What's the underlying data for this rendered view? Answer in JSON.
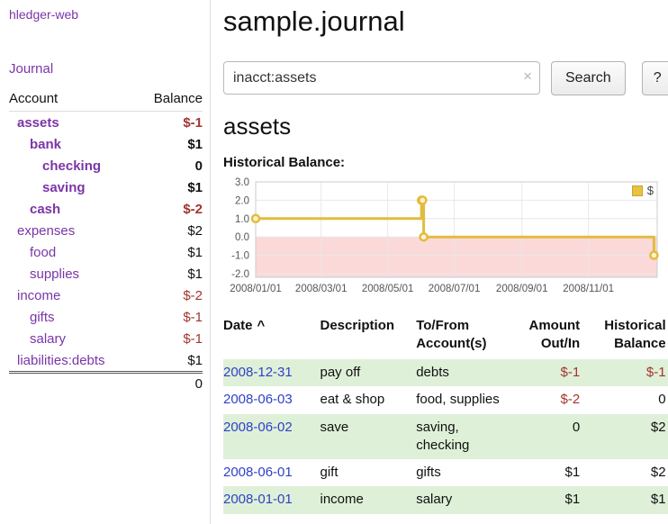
{
  "colors": {
    "link_purple": "#7b35a8",
    "link_blue": "#2f41c8",
    "negative": "#a3342f",
    "stripe": "#dff0d8"
  },
  "sidebar": {
    "app_title": "hledger-web",
    "journal_link": "Journal",
    "accounts": {
      "header": {
        "account": "Account",
        "balance": "Balance"
      },
      "rows": [
        {
          "name": "assets",
          "balance": "$-1",
          "indent": 0,
          "bold": true,
          "negative": true
        },
        {
          "name": "bank",
          "balance": "$1",
          "indent": 1,
          "bold": true,
          "negative": false
        },
        {
          "name": "checking",
          "balance": "0",
          "indent": 2,
          "bold": true,
          "negative": false
        },
        {
          "name": "saving",
          "balance": "$1",
          "indent": 2,
          "bold": true,
          "negative": false
        },
        {
          "name": "cash",
          "balance": "$-2",
          "indent": 1,
          "bold": true,
          "negative": true
        },
        {
          "name": "expenses",
          "balance": "$2",
          "indent": 0,
          "bold": false,
          "negative": false
        },
        {
          "name": "food",
          "balance": "$1",
          "indent": 1,
          "bold": false,
          "negative": false
        },
        {
          "name": "supplies",
          "balance": "$1",
          "indent": 1,
          "bold": false,
          "negative": false
        },
        {
          "name": "income",
          "balance": "$-2",
          "indent": 0,
          "bold": false,
          "negative": true
        },
        {
          "name": "gifts",
          "balance": "$-1",
          "indent": 1,
          "bold": false,
          "negative": true
        },
        {
          "name": "salary",
          "balance": "$-1",
          "indent": 1,
          "bold": false,
          "negative": true
        },
        {
          "name": "liabilities:debts",
          "balance": "$1",
          "indent": 0,
          "bold": false,
          "negative": false
        }
      ],
      "total": "0"
    }
  },
  "main": {
    "title": "sample.journal",
    "search": {
      "value": "inacct:assets",
      "clear_icon": "×",
      "search_button": "Search",
      "help_button": "?"
    },
    "account_heading": "assets",
    "chart_label": "Historical Balance:"
  },
  "chart_data": {
    "type": "line",
    "title": "Historical Balance",
    "series": [
      {
        "name": "$",
        "x": [
          "2008-01-01",
          "2008-06-01",
          "2008-06-02",
          "2008-06-03",
          "2008-12-31"
        ],
        "values": [
          1,
          2,
          2,
          0,
          -1
        ]
      }
    ],
    "interpolation": "step-after",
    "ylim": [
      -2.2,
      3.0
    ],
    "yticks": [
      3.0,
      2.0,
      1.0,
      0.0,
      -1.0,
      -2.0
    ],
    "ytick_labels": [
      "3.0",
      "2.0",
      "1.0",
      "0.0",
      "-1.0",
      "-2.0"
    ],
    "xtick_labels": [
      "2008/01/01",
      "2008/03/01",
      "2008/05/01",
      "2008/07/01",
      "2008/09/01",
      "2008/11/01"
    ],
    "legend": {
      "label": "$",
      "position": "top-right"
    },
    "line_color": "#e3bb3f",
    "point_fill": "#fdf3d0",
    "negative_region_color": "#fbd9d9",
    "grid_color": "#e8e8e8",
    "border_color": "#cccccc"
  },
  "register": {
    "columns": [
      {
        "lines": [
          "Date"
        ],
        "align": "left",
        "sortable": true,
        "sort_icon": "^"
      },
      {
        "lines": [
          "Description"
        ],
        "align": "left"
      },
      {
        "lines": [
          "To/From",
          "Account(s)"
        ],
        "align": "left"
      },
      {
        "lines": [
          "Amount",
          "Out/In"
        ],
        "align": "right"
      },
      {
        "lines": [
          "Historical",
          "Balance"
        ],
        "align": "right"
      }
    ],
    "rows": [
      {
        "date": "2008-12-31",
        "description": "pay off",
        "accounts": "debts",
        "amount": "$-1",
        "amount_negative": true,
        "balance": "$-1",
        "balance_negative": true
      },
      {
        "date": "2008-06-03",
        "description": "eat & shop",
        "accounts": "food, supplies",
        "amount": "$-2",
        "amount_negative": true,
        "balance": "0",
        "balance_negative": false
      },
      {
        "date": "2008-06-02",
        "description": "save",
        "accounts": "saving,\nchecking",
        "amount": "0",
        "amount_negative": false,
        "balance": "$2",
        "balance_negative": false
      },
      {
        "date": "2008-06-01",
        "description": "gift",
        "accounts": "gifts",
        "amount": "$1",
        "amount_negative": false,
        "balance": "$2",
        "balance_negative": false
      },
      {
        "date": "2008-01-01",
        "description": "income",
        "accounts": "salary",
        "amount": "$1",
        "amount_negative": false,
        "balance": "$1",
        "balance_negative": false
      }
    ]
  }
}
